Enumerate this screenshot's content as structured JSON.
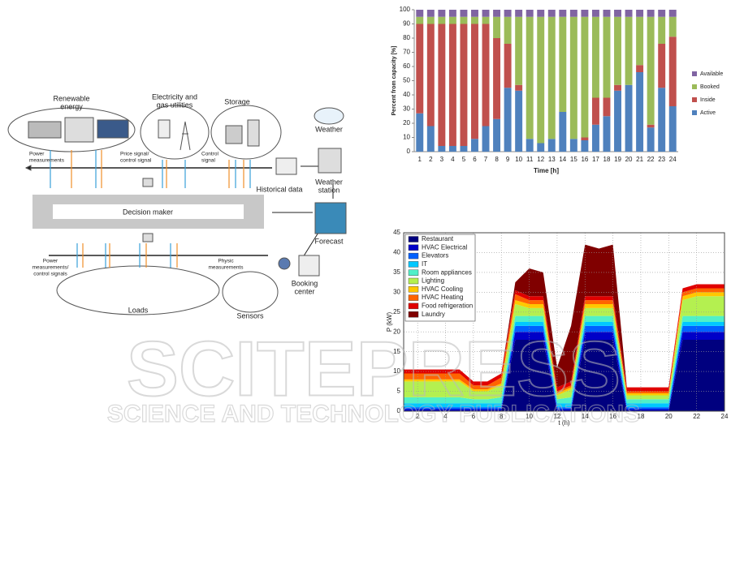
{
  "diagram": {
    "renewable": [
      "Renewable",
      "energy"
    ],
    "utilities": [
      "Electricity and",
      "gas utilities"
    ],
    "storage": [
      "Storage"
    ],
    "weather": [
      "Weather"
    ],
    "weather_station": [
      "Weather",
      "station"
    ],
    "power_measurements": [
      "Power",
      "measurements"
    ],
    "price_signal": [
      "Price signal/",
      "control signal"
    ],
    "control_signal": [
      "Control",
      "signal"
    ],
    "historical": [
      "Historical data"
    ],
    "decision": [
      "Decision maker"
    ],
    "forecast": [
      "Forecast"
    ],
    "power_control": [
      "Power",
      "measurements/",
      "control signals"
    ],
    "physic": [
      "Physic",
      "measurements"
    ],
    "loads": [
      "Loads"
    ],
    "sensors": [
      "Sensors"
    ],
    "booking": [
      "Booking",
      "center"
    ]
  },
  "watermark": {
    "title": "SCITEPRESS",
    "subtitle": "SCIENCE AND TECHNOLOGY PUBLICATIONS"
  },
  "chart_data": [
    {
      "type": "bar",
      "stacked": true,
      "xlabel": "Time [h]",
      "ylabel": "Percent from capacity [%]",
      "categories": [
        "1",
        "2",
        "3",
        "4",
        "5",
        "6",
        "7",
        "8",
        "9",
        "10",
        "11",
        "12",
        "13",
        "14",
        "15",
        "16",
        "17",
        "18",
        "19",
        "20",
        "21",
        "22",
        "23",
        "24"
      ],
      "ylim": [
        0,
        100
      ],
      "yticks": [
        0,
        10,
        20,
        30,
        40,
        50,
        60,
        70,
        80,
        90,
        100
      ],
      "series": [
        {
          "name": "Active",
          "color": "#4f81bd",
          "values": [
            27,
            18,
            4,
            4,
            4,
            9,
            18,
            23,
            45,
            43,
            9,
            6,
            9,
            28,
            9,
            8,
            19,
            25,
            43,
            47,
            56,
            17,
            45,
            32
          ]
        },
        {
          "name": "Inside",
          "color": "#c0504d",
          "values": [
            63,
            72,
            86,
            86,
            86,
            81,
            72,
            57,
            31,
            4,
            0,
            0,
            0,
            0,
            0,
            2,
            19,
            13,
            4,
            0,
            5,
            2,
            31,
            49
          ]
        },
        {
          "name": "Booked",
          "color": "#9bbb59",
          "values": [
            5,
            5,
            5,
            5,
            5,
            5,
            5,
            15,
            19,
            48,
            86,
            89,
            86,
            67,
            86,
            85,
            57,
            57,
            48,
            48,
            34,
            76,
            19,
            14
          ]
        },
        {
          "name": "Available",
          "color": "#8064a2",
          "values": [
            5,
            5,
            5,
            5,
            5,
            5,
            5,
            5,
            5,
            5,
            5,
            5,
            5,
            5,
            5,
            5,
            5,
            5,
            5,
            5,
            5,
            5,
            5,
            5
          ]
        }
      ]
    },
    {
      "type": "area",
      "stacked": true,
      "grid": true,
      "xlabel": "t (h)",
      "ylabel": "P (kW)",
      "x": [
        1,
        2,
        3,
        4,
        5,
        6,
        7,
        8,
        9,
        10,
        11,
        12,
        13,
        14,
        15,
        16,
        17,
        18,
        19,
        20,
        21,
        22,
        23,
        24
      ],
      "xlim": [
        1,
        24
      ],
      "xticks": [
        2,
        4,
        6,
        8,
        10,
        12,
        14,
        16,
        18,
        20,
        22,
        24
      ],
      "ylim": [
        0,
        45
      ],
      "yticks": [
        0,
        5,
        10,
        15,
        20,
        25,
        30,
        35,
        40,
        45
      ],
      "series": [
        {
          "name": "Restaurant",
          "color": "#00007f",
          "values": [
            0,
            0,
            0,
            0,
            0,
            0,
            0,
            0,
            18,
            18,
            18,
            0,
            0,
            18,
            18,
            18,
            0,
            0,
            0,
            0,
            18,
            18,
            18,
            18
          ]
        },
        {
          "name": "HVAC Electrical",
          "color": "#0000c8",
          "values": [
            0.5,
            0.5,
            0.5,
            0.5,
            0.5,
            0.5,
            0.5,
            0.5,
            2,
            2,
            2,
            0.5,
            0.5,
            2,
            2,
            2,
            0.5,
            0.5,
            0.5,
            0.5,
            2,
            2,
            2,
            2
          ]
        },
        {
          "name": "Elevators",
          "color": "#0060ff",
          "values": [
            0.5,
            0.5,
            0.5,
            0.5,
            0.5,
            0.5,
            0.5,
            0.5,
            1.5,
            1.5,
            1.5,
            0.5,
            0.5,
            1.5,
            1.5,
            1.5,
            0.5,
            0.5,
            0.5,
            0.5,
            1.5,
            1.5,
            1.5,
            1.5
          ]
        },
        {
          "name": "IT",
          "color": "#00c8ff",
          "values": [
            1,
            1,
            1,
            1,
            1,
            1,
            1,
            1,
            1,
            1,
            1,
            1,
            1,
            1,
            1,
            1,
            1,
            1,
            1,
            1,
            1,
            1,
            1,
            1
          ]
        },
        {
          "name": "Room appliances",
          "color": "#50f0c8",
          "values": [
            1.5,
            1.5,
            1.5,
            1.5,
            1.5,
            1,
            1,
            1.5,
            1.5,
            1.5,
            1.5,
            1,
            1.5,
            1.5,
            1.5,
            1.5,
            1,
            1,
            1,
            1,
            1.5,
            1.5,
            1.5,
            1.5
          ]
        },
        {
          "name": "Lighting",
          "color": "#b4f050",
          "values": [
            4,
            4,
            4,
            4,
            4,
            2,
            2,
            3,
            3,
            2,
            2,
            1,
            2,
            2,
            2,
            2,
            1,
            1,
            1,
            1,
            4,
            5,
            5,
            5
          ]
        },
        {
          "name": "HVAC Cooling",
          "color": "#ffc800",
          "values": [
            0.5,
            0.5,
            0.5,
            0.5,
            0.5,
            0.5,
            0.5,
            0.5,
            1,
            1,
            1,
            0.5,
            0.5,
            1,
            1,
            1,
            0.5,
            0.5,
            0.5,
            0.5,
            1,
            1,
            1,
            1
          ]
        },
        {
          "name": "HVAC Heating",
          "color": "#ff6400",
          "values": [
            1.5,
            1.5,
            1.5,
            1.5,
            1.5,
            1,
            1,
            1.5,
            1.5,
            1,
            1,
            0.5,
            0.5,
            1,
            1,
            1,
            0.5,
            0.5,
            0.5,
            0.5,
            1,
            1,
            1,
            1
          ]
        },
        {
          "name": "Food refrigeration",
          "color": "#e00000",
          "values": [
            1,
            1,
            1,
            1,
            1,
            1,
            1,
            1,
            1,
            1,
            1,
            1,
            1,
            1,
            1,
            1,
            1,
            1,
            1,
            1,
            1,
            1,
            1,
            1
          ]
        },
        {
          "name": "Laundry",
          "color": "#800000",
          "values": [
            0,
            0,
            0,
            0,
            0,
            0,
            0,
            0,
            2,
            7,
            6,
            5,
            14,
            13,
            12,
            13,
            0,
            0,
            0,
            0,
            0,
            0,
            0,
            0
          ]
        }
      ]
    }
  ]
}
